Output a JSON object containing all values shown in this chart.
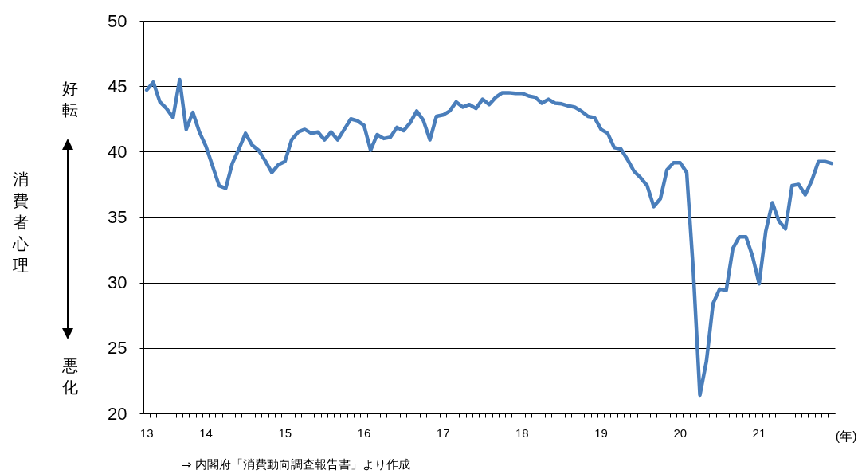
{
  "chart_data": {
    "type": "line",
    "categories": [
      "13",
      null,
      null,
      null,
      null,
      null,
      null,
      null,
      null,
      "14",
      null,
      null,
      null,
      null,
      null,
      null,
      null,
      null,
      null,
      null,
      null,
      "15",
      null,
      null,
      null,
      null,
      null,
      null,
      null,
      null,
      null,
      null,
      null,
      "16",
      null,
      null,
      null,
      null,
      null,
      null,
      null,
      null,
      null,
      null,
      null,
      "17",
      null,
      null,
      null,
      null,
      null,
      null,
      null,
      null,
      null,
      null,
      null,
      "18",
      null,
      null,
      null,
      null,
      null,
      null,
      null,
      null,
      null,
      null,
      null,
      "19",
      null,
      null,
      null,
      null,
      null,
      null,
      null,
      null,
      null,
      null,
      null,
      "20",
      null,
      null,
      null,
      null,
      null,
      null,
      null,
      null,
      null,
      null,
      null,
      "21",
      null,
      null,
      null,
      null,
      null,
      null,
      null,
      null,
      null,
      null,
      null
    ],
    "series": [
      {
        "color": "#4a7ebb",
        "values": [
          44.7,
          45.3,
          43.8,
          43.3,
          42.6,
          45.5,
          41.7,
          43.0,
          41.5,
          40.4,
          38.9,
          37.4,
          37.2,
          39.1,
          40.2,
          41.4,
          40.5,
          40.1,
          39.3,
          38.4,
          39.0,
          39.25,
          40.9,
          41.5,
          41.7,
          41.4,
          41.5,
          40.9,
          41.5,
          40.9,
          41.7,
          42.5,
          42.35,
          42.0,
          40.1,
          41.3,
          41.0,
          41.1,
          41.85,
          41.6,
          42.2,
          43.1,
          42.4,
          40.9,
          42.7,
          42.8,
          43.1,
          43.8,
          43.4,
          43.6,
          43.3,
          44.0,
          43.6,
          44.15,
          44.5,
          44.5,
          44.45,
          44.45,
          44.25,
          44.15,
          43.7,
          44.0,
          43.7,
          43.65,
          43.5,
          43.4,
          43.1,
          42.7,
          42.6,
          41.7,
          41.4,
          40.3,
          40.2,
          39.4,
          38.5,
          38.0,
          37.4,
          35.8,
          36.4,
          38.6,
          39.15,
          39.15,
          38.4,
          30.9,
          21.4,
          24.0,
          28.4,
          29.5,
          29.4,
          32.6,
          33.5,
          33.5,
          32.0,
          29.9,
          33.9,
          36.1,
          34.7,
          34.1,
          37.4,
          37.5,
          36.7,
          37.8,
          39.25,
          39.25,
          39.1
        ]
      }
    ],
    "ylim": [
      20,
      50
    ],
    "yticks": [
      20,
      25,
      30,
      35,
      40,
      45,
      50
    ],
    "ylabel": "消費者心理",
    "xlabel": "(年)",
    "grid": "y",
    "annotations": [
      "好転",
      "悪化",
      "⇒ 内閣府「消費動向調査報告書」より作成"
    ]
  }
}
